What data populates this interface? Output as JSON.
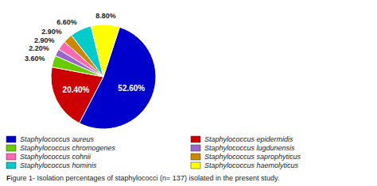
{
  "chart_data": {
    "type": "pie",
    "caption": "Figure 1- Isolation percentages of staphylococci (n= 137) isolated in the present study.",
    "categories": [
      "Staphylococcus aureus",
      "Staphylococcus epidermidis",
      "Staphylococcus chromogenes",
      "Staphylococcus lugdunensis",
      "Staphylococcus cohnii",
      "Staphylococcus saprophyticus",
      "Staphylococcus hominis",
      "Staphylococcus haemolyticus"
    ],
    "values": [
      52.6,
      20.4,
      3.6,
      2.2,
      2.9,
      2.9,
      6.6,
      8.8
    ],
    "value_labels": [
      "52.60%",
      "20.40%",
      "3.60%",
      "2.20%",
      "2.90%",
      "2.90%",
      "6.60%",
      "8.80%"
    ],
    "colors": [
      "#0000CC",
      "#CC0000",
      "#66CC00",
      "#9966CC",
      "#FF69B4",
      "#CC8800",
      "#00CCCC",
      "#FFFF00"
    ],
    "data_labels": true,
    "legend": "bottom"
  }
}
